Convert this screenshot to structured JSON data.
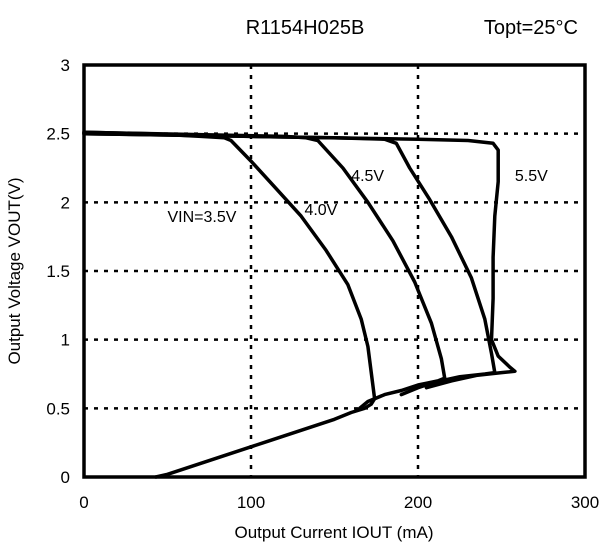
{
  "chart_data": {
    "type": "line",
    "title": "R1154H025B",
    "subtitle": "Topt=25°C",
    "xlabel": "Output Current IOUT (mA)",
    "ylabel": "Output Voltage VOUT(V)",
    "xlim": [
      0,
      300
    ],
    "ylim": [
      0,
      3
    ],
    "xticks": [
      0,
      100,
      200,
      300
    ],
    "yticks": [
      0,
      0.5,
      1,
      1.5,
      2,
      2.5,
      3
    ],
    "ytick_labels": [
      "0",
      "0.5",
      "1",
      "1.5",
      "2",
      "2.5",
      "3"
    ],
    "grid": true,
    "series": [
      {
        "name": "VIN=3.5V",
        "x": [
          0,
          40,
          70,
          84,
          88,
          100,
          115,
          130,
          145,
          158,
          166,
          170,
          174,
          172,
          168,
          160,
          150,
          140,
          130,
          120,
          110,
          100,
          90,
          80,
          70,
          60,
          50,
          43
        ],
        "y": [
          2.51,
          2.5,
          2.48,
          2.47,
          2.45,
          2.3,
          2.1,
          1.9,
          1.65,
          1.4,
          1.15,
          0.95,
          0.57,
          0.53,
          0.5,
          0.47,
          0.42,
          0.38,
          0.34,
          0.3,
          0.26,
          0.22,
          0.18,
          0.14,
          0.1,
          0.06,
          0.02,
          0.0
        ]
      },
      {
        "name": "4.0V",
        "x": [
          0,
          80,
          120,
          133,
          140,
          155,
          170,
          185,
          198,
          208,
          214,
          216,
          212,
          200,
          190,
          180,
          170,
          165
        ],
        "y": [
          2.51,
          2.49,
          2.48,
          2.47,
          2.45,
          2.25,
          2.0,
          1.72,
          1.42,
          1.12,
          0.86,
          0.72,
          0.7,
          0.67,
          0.63,
          0.6,
          0.55,
          0.5
        ]
      },
      {
        "name": "4.5V",
        "x": [
          0,
          100,
          150,
          180,
          187,
          195,
          207,
          220,
          232,
          240,
          244,
          246,
          240,
          225,
          210,
          200,
          190
        ],
        "y": [
          2.5,
          2.48,
          2.47,
          2.46,
          2.43,
          2.25,
          2.02,
          1.75,
          1.45,
          1.15,
          0.9,
          0.76,
          0.75,
          0.73,
          0.69,
          0.65,
          0.6
        ]
      },
      {
        "name": "5.5V",
        "x": [
          0,
          100,
          200,
          230,
          245,
          248,
          248,
          246,
          245,
          245,
          244,
          248,
          255,
          258,
          250,
          235,
          220,
          205
        ],
        "y": [
          2.5,
          2.48,
          2.46,
          2.45,
          2.43,
          2.38,
          2.15,
          1.9,
          1.6,
          1.3,
          1.0,
          0.88,
          0.8,
          0.77,
          0.76,
          0.74,
          0.7,
          0.65
        ]
      }
    ],
    "series_label_positions": [
      {
        "name": "VIN=3.5V",
        "x": 50,
        "y": 1.9
      },
      {
        "name": "4.0V",
        "x": 132,
        "y": 1.95
      },
      {
        "name": "4.5V",
        "x": 160,
        "y": 2.2
      },
      {
        "name": "5.5V",
        "x": 258,
        "y": 2.2
      }
    ]
  }
}
